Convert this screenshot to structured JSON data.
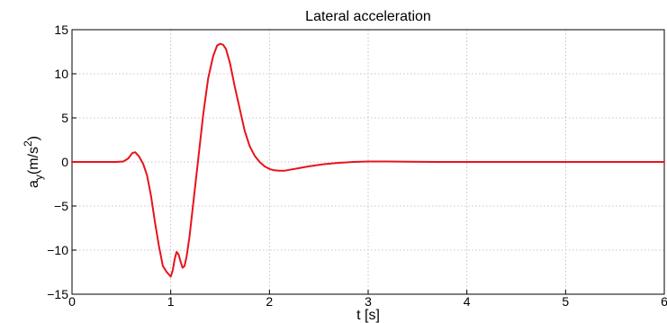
{
  "chart_data": {
    "type": "line",
    "title": "Lateral acceleration",
    "xlabel": "t [s]",
    "ylabel": "a_y(m/s^2)",
    "ylabel_parts": {
      "main": "a",
      "sub": "y",
      "unit_pre": "(m/s",
      "sup": "2",
      "unit_post": ")"
    },
    "xlim": [
      0,
      6
    ],
    "ylim": [
      -15,
      15
    ],
    "xticks": [
      0,
      1,
      2,
      3,
      4,
      5,
      6
    ],
    "yticks": [
      -15,
      -10,
      -5,
      0,
      5,
      10,
      15
    ],
    "grid": true,
    "series": [
      {
        "color": "#e8131b",
        "x": [
          0,
          0.45,
          0.52,
          0.57,
          0.61,
          0.64,
          0.68,
          0.72,
          0.76,
          0.8,
          0.84,
          0.88,
          0.92,
          0.96,
          1.0,
          1.02,
          1.04,
          1.06,
          1.08,
          1.1,
          1.12,
          1.14,
          1.16,
          1.19,
          1.23,
          1.28,
          1.33,
          1.38,
          1.43,
          1.47,
          1.5,
          1.53,
          1.56,
          1.6,
          1.65,
          1.7,
          1.75,
          1.8,
          1.85,
          1.9,
          1.95,
          2.0,
          2.05,
          2.1,
          2.15,
          2.2,
          2.3,
          2.4,
          2.55,
          2.7,
          2.85,
          3.0,
          3.2,
          3.4,
          3.7,
          4.0,
          4.5,
          5.0,
          5.5,
          6.0
        ],
        "y": [
          0,
          0,
          0.05,
          0.4,
          1.0,
          1.1,
          0.6,
          -0.2,
          -1.5,
          -3.8,
          -6.8,
          -9.5,
          -11.8,
          -12.5,
          -13.0,
          -12.3,
          -11.0,
          -10.2,
          -10.5,
          -11.3,
          -12.0,
          -11.8,
          -10.8,
          -8.5,
          -4.5,
          0.5,
          5.5,
          9.5,
          12.0,
          13.2,
          13.4,
          13.3,
          12.8,
          11.2,
          8.5,
          6.0,
          3.5,
          1.8,
          0.7,
          0.0,
          -0.5,
          -0.8,
          -0.95,
          -1.0,
          -1.0,
          -0.9,
          -0.7,
          -0.5,
          -0.25,
          -0.1,
          0.0,
          0.05,
          0.05,
          0.03,
          0.0,
          0.0,
          0.0,
          0.0,
          0.0,
          0.0
        ]
      }
    ]
  }
}
